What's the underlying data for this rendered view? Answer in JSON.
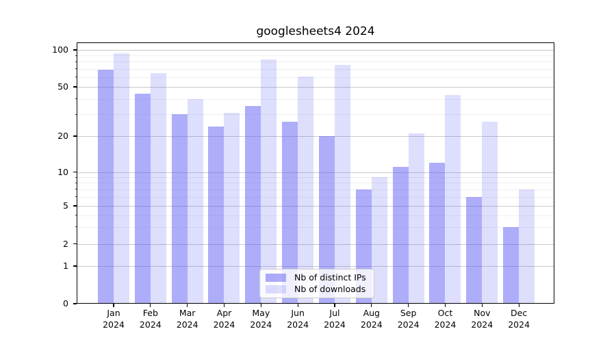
{
  "title": "googlesheets4 2024",
  "chart_data": {
    "type": "bar",
    "title": "googlesheets4 2024",
    "xlabel": "",
    "ylabel": "",
    "yscale": "log-like (symlog, 0 shown at baseline)",
    "ylim": [
      0,
      110
    ],
    "grid": true,
    "legend_position": "lower center",
    "categories": [
      "Jan",
      "Feb",
      "Mar",
      "Apr",
      "May",
      "Jun",
      "Jul",
      "Aug",
      "Sep",
      "Oct",
      "Nov",
      "Dec"
    ],
    "year_label": "2024",
    "y_ticks": [
      100,
      50,
      20,
      10,
      5,
      2,
      1,
      0
    ],
    "y_minor_ticks": [
      90,
      80,
      70,
      60,
      40,
      30,
      9,
      8,
      7,
      6,
      4,
      3
    ],
    "series": [
      {
        "name": "Nb of distinct IPs",
        "key": "distinct-ips",
        "color": "rgba(92,92,243,0.5)",
        "color_hex_rendered": "#adadf9",
        "values": [
          69,
          44,
          30,
          24,
          35,
          26,
          20,
          7,
          11,
          12,
          6,
          3
        ]
      },
      {
        "name": "Nb of downloads",
        "key": "downloads",
        "color": "rgba(92,92,243,0.2)",
        "color_hex_rendered": "#dedefc",
        "values": [
          94,
          65,
          40,
          31,
          84,
          61,
          75,
          9,
          21,
          43,
          26,
          7
        ]
      }
    ],
    "axis_color": "#000000",
    "grid_major_color": "#c9c9c9",
    "grid_minor_color": "#efefef"
  }
}
